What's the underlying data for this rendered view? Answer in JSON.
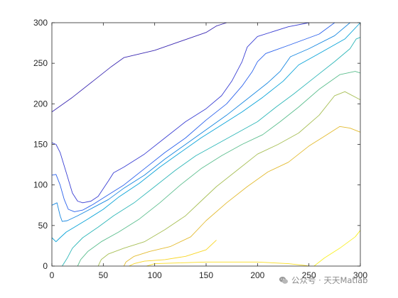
{
  "chart_data": {
    "type": "line",
    "subtype": "contour",
    "title": "",
    "xlabel": "",
    "ylabel": "",
    "xlim": [
      0,
      300
    ],
    "ylim": [
      0,
      300
    ],
    "x_ticks": [
      0,
      50,
      100,
      150,
      200,
      250,
      300
    ],
    "y_ticks": [
      0,
      50,
      100,
      150,
      200,
      250,
      300
    ],
    "grid": false,
    "legend": "none",
    "colormap": "parula",
    "series": [
      {
        "color": "#3b29b2",
        "points": [
          [
            0,
            190
          ],
          [
            20,
            208
          ],
          [
            40,
            228
          ],
          [
            58,
            246
          ],
          [
            70,
            257
          ],
          [
            100,
            266
          ],
          [
            150,
            288
          ],
          [
            160,
            296
          ],
          [
            170,
            300
          ]
        ]
      },
      {
        "color": "#3a3fd3",
        "points": [
          [
            0,
            152
          ],
          [
            4,
            150
          ],
          [
            8,
            140
          ],
          [
            14,
            115
          ],
          [
            20,
            90
          ],
          [
            25,
            80
          ],
          [
            30,
            78
          ],
          [
            38,
            80
          ],
          [
            45,
            86
          ],
          [
            55,
            105
          ],
          [
            60,
            115
          ],
          [
            70,
            122
          ],
          [
            90,
            138
          ],
          [
            110,
            158
          ],
          [
            130,
            178
          ],
          [
            150,
            194
          ],
          [
            165,
            210
          ],
          [
            175,
            228
          ],
          [
            185,
            252
          ],
          [
            190,
            270
          ],
          [
            200,
            283
          ],
          [
            230,
            295
          ],
          [
            250,
            300
          ]
        ]
      },
      {
        "color": "#2b62ec",
        "points": [
          [
            0,
            112
          ],
          [
            4,
            113
          ],
          [
            8,
            100
          ],
          [
            12,
            82
          ],
          [
            16,
            70
          ],
          [
            22,
            67
          ],
          [
            30,
            69
          ],
          [
            40,
            76
          ],
          [
            55,
            88
          ],
          [
            70,
            100
          ],
          [
            90,
            120
          ],
          [
            110,
            140
          ],
          [
            130,
            158
          ],
          [
            150,
            180
          ],
          [
            170,
            200
          ],
          [
            185,
            222
          ],
          [
            195,
            240
          ],
          [
            200,
            252
          ],
          [
            208,
            262
          ],
          [
            230,
            272
          ],
          [
            260,
            286
          ],
          [
            275,
            300
          ]
        ]
      },
      {
        "color": "#1787e0",
        "points": [
          [
            0,
            75
          ],
          [
            5,
            78
          ],
          [
            8,
            62
          ],
          [
            10,
            55
          ],
          [
            15,
            56
          ],
          [
            25,
            62
          ],
          [
            40,
            72
          ],
          [
            55,
            82
          ],
          [
            70,
            96
          ],
          [
            90,
            112
          ],
          [
            110,
            132
          ],
          [
            130,
            150
          ],
          [
            150,
            168
          ],
          [
            170,
            186
          ],
          [
            190,
            206
          ],
          [
            210,
            226
          ],
          [
            222,
            240
          ],
          [
            232,
            258
          ],
          [
            250,
            268
          ],
          [
            275,
            284
          ],
          [
            290,
            300
          ]
        ]
      },
      {
        "color": "#09a3d8",
        "points": [
          [
            0,
            35
          ],
          [
            4,
            30
          ],
          [
            8,
            35
          ],
          [
            14,
            42
          ],
          [
            22,
            48
          ],
          [
            35,
            58
          ],
          [
            50,
            70
          ],
          [
            65,
            85
          ],
          [
            85,
            102
          ],
          [
            105,
            122
          ],
          [
            125,
            140
          ],
          [
            145,
            158
          ],
          [
            165,
            174
          ],
          [
            185,
            190
          ],
          [
            205,
            208
          ],
          [
            225,
            228
          ],
          [
            240,
            248
          ],
          [
            260,
            262
          ],
          [
            285,
            280
          ],
          [
            300,
            300
          ]
        ]
      },
      {
        "color": "#2fb7b8",
        "points": [
          [
            10,
            0
          ],
          [
            15,
            10
          ],
          [
            20,
            22
          ],
          [
            30,
            35
          ],
          [
            45,
            48
          ],
          [
            60,
            62
          ],
          [
            80,
            78
          ],
          [
            100,
            98
          ],
          [
            120,
            118
          ],
          [
            140,
            136
          ],
          [
            160,
            150
          ],
          [
            180,
            164
          ],
          [
            200,
            178
          ],
          [
            218,
            196
          ],
          [
            235,
            212
          ],
          [
            255,
            232
          ],
          [
            275,
            252
          ],
          [
            290,
            268
          ],
          [
            296,
            280
          ],
          [
            300,
            282
          ]
        ]
      },
      {
        "color": "#5cbe8e",
        "points": [
          [
            25,
            0
          ],
          [
            28,
            8
          ],
          [
            35,
            18
          ],
          [
            48,
            30
          ],
          [
            65,
            42
          ],
          [
            85,
            58
          ],
          [
            105,
            78
          ],
          [
            125,
            100
          ],
          [
            145,
            120
          ],
          [
            165,
            136
          ],
          [
            185,
            150
          ],
          [
            205,
            162
          ],
          [
            222,
            178
          ],
          [
            240,
            196
          ],
          [
            260,
            218
          ],
          [
            280,
            236
          ],
          [
            295,
            240
          ],
          [
            300,
            238
          ]
        ]
      },
      {
        "color": "#a7bf55",
        "points": [
          [
            45,
            0
          ],
          [
            48,
            8
          ],
          [
            55,
            15
          ],
          [
            70,
            22
          ],
          [
            90,
            30
          ],
          [
            110,
            45
          ],
          [
            130,
            62
          ],
          [
            145,
            80
          ],
          [
            160,
            98
          ],
          [
            180,
            118
          ],
          [
            200,
            138
          ],
          [
            220,
            150
          ],
          [
            240,
            164
          ],
          [
            260,
            186
          ],
          [
            275,
            210
          ],
          [
            285,
            215
          ],
          [
            300,
            205
          ]
        ]
      },
      {
        "color": "#e3bb30",
        "points": [
          [
            70,
            0
          ],
          [
            72,
            5
          ],
          [
            80,
            12
          ],
          [
            95,
            18
          ],
          [
            115,
            24
          ],
          [
            135,
            36
          ],
          [
            150,
            56
          ],
          [
            170,
            78
          ],
          [
            190,
            98
          ],
          [
            210,
            116
          ],
          [
            230,
            128
          ],
          [
            250,
            148
          ],
          [
            265,
            160
          ],
          [
            280,
            172
          ],
          [
            290,
            170
          ],
          [
            300,
            165
          ]
        ]
      },
      {
        "color": "#f8d522",
        "points": [
          [
            75,
            0
          ],
          [
            80,
            3
          ],
          [
            90,
            6
          ],
          [
            110,
            8
          ],
          [
            130,
            12
          ],
          [
            150,
            20
          ],
          [
            160,
            32
          ]
        ]
      },
      {
        "color": "#fadd1f",
        "points": [
          [
            92,
            0
          ],
          [
            100,
            3
          ],
          [
            150,
            5
          ],
          [
            200,
            5
          ],
          [
            230,
            3
          ],
          [
            245,
            1
          ],
          [
            250,
            0
          ]
        ]
      },
      {
        "color": "#f9f024",
        "points": [
          [
            255,
            0
          ],
          [
            265,
            10
          ],
          [
            280,
            22
          ],
          [
            295,
            36
          ],
          [
            300,
            44
          ]
        ]
      }
    ]
  },
  "watermark": {
    "text": "公众号 · 天天Matlab",
    "icon": "wechat-icon",
    "color": "#8a8a8a"
  }
}
